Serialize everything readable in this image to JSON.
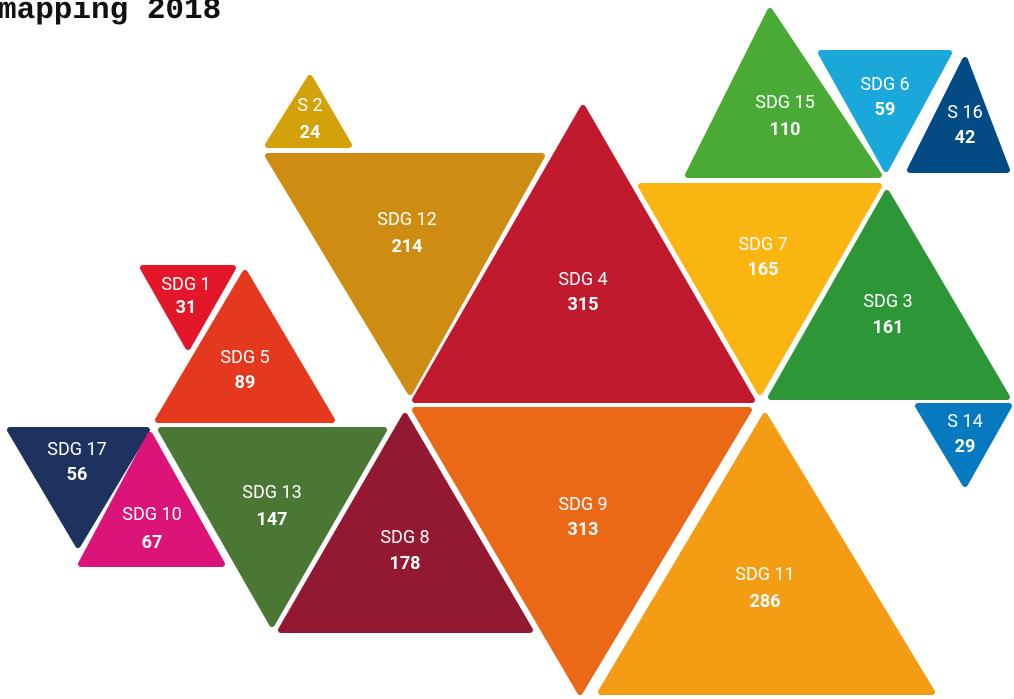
{
  "title": "mapping 2018",
  "nodes": [
    {
      "label": "SDG 4",
      "value": 315,
      "color": "#c1192e"
    },
    {
      "label": "SDG 9",
      "value": 313,
      "color": "#eb6816"
    },
    {
      "label": "SDG 11",
      "value": 286,
      "color": "#f39c14"
    },
    {
      "label": "SDG 12",
      "value": 214,
      "color": "#cf8c12"
    },
    {
      "label": "S 2",
      "value": 24,
      "color": "#d3a10a"
    },
    {
      "label": "SDG 7",
      "value": 165,
      "color": "#fab511"
    },
    {
      "label": "SDG 3",
      "value": 161,
      "color": "#2d9637"
    },
    {
      "label": "SDG 15",
      "value": 110,
      "color": "#49aa36"
    },
    {
      "label": "SDG 6",
      "value": 59,
      "color": "#1aa7da"
    },
    {
      "label": "S 16",
      "value": 42,
      "color": "#034b85"
    },
    {
      "label": "S 14",
      "value": 29,
      "color": "#0679c1"
    },
    {
      "label": "SDG 1",
      "value": 31,
      "color": "#e4172a"
    },
    {
      "label": "SDG 5",
      "value": 89,
      "color": "#e4381f"
    },
    {
      "label": "SDG 17",
      "value": 56,
      "color": "#1e3260"
    },
    {
      "label": "SDG 10",
      "value": 67,
      "color": "#dc1378"
    },
    {
      "label": "SDG 13",
      "value": 147,
      "color": "#4a7834"
    },
    {
      "label": "SDG 8",
      "value": 178,
      "color": "#931832"
    }
  ]
}
